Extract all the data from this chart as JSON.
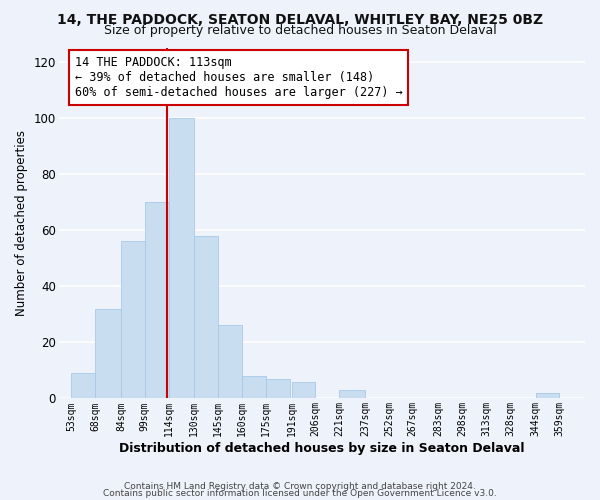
{
  "title1": "14, THE PADDOCK, SEATON DELAVAL, WHITLEY BAY, NE25 0BZ",
  "title2": "Size of property relative to detached houses in Seaton Delaval",
  "xlabel": "Distribution of detached houses by size in Seaton Delaval",
  "ylabel": "Number of detached properties",
  "footer1": "Contains HM Land Registry data © Crown copyright and database right 2024.",
  "footer2": "Contains public sector information licensed under the Open Government Licence v3.0.",
  "annotation_title": "14 THE PADDOCK: 113sqm",
  "annotation_line1": "← 39% of detached houses are smaller (148)",
  "annotation_line2": "60% of semi-detached houses are larger (227) →",
  "bar_left_edges": [
    53,
    68,
    84,
    99,
    114,
    130,
    145,
    160,
    175,
    191,
    206,
    221,
    237,
    252,
    267,
    283,
    298,
    313,
    328,
    344
  ],
  "bar_heights": [
    9,
    32,
    56,
    70,
    100,
    58,
    26,
    8,
    7,
    6,
    0,
    3,
    0,
    0,
    0,
    0,
    0,
    0,
    0,
    2
  ],
  "bar_widths": [
    15,
    16,
    15,
    15,
    16,
    15,
    15,
    15,
    15,
    15,
    15,
    16,
    15,
    15,
    16,
    15,
    15,
    15,
    16,
    15
  ],
  "tick_labels": [
    "53sqm",
    "68sqm",
    "84sqm",
    "99sqm",
    "114sqm",
    "130sqm",
    "145sqm",
    "160sqm",
    "175sqm",
    "191sqm",
    "206sqm",
    "221sqm",
    "237sqm",
    "252sqm",
    "267sqm",
    "283sqm",
    "298sqm",
    "313sqm",
    "328sqm",
    "344sqm",
    "359sqm"
  ],
  "tick_positions": [
    53,
    68,
    84,
    99,
    114,
    130,
    145,
    160,
    175,
    191,
    206,
    221,
    237,
    252,
    267,
    283,
    298,
    313,
    328,
    344,
    359
  ],
  "bar_color": "#c9ddf0",
  "bar_edge_color": "#a8c8e8",
  "vline_x": 113,
  "vline_color": "#cc0000",
  "annotation_box_color": "#ffffff",
  "annotation_box_edge": "#cc0000",
  "ylim": [
    0,
    125
  ],
  "xlim": [
    45,
    375
  ],
  "bg_color": "#eef2fa",
  "grid_color": "#ffffff",
  "title1_fontsize": 10,
  "title2_fontsize": 9,
  "yticks": [
    0,
    20,
    40,
    60,
    80,
    100,
    120
  ]
}
